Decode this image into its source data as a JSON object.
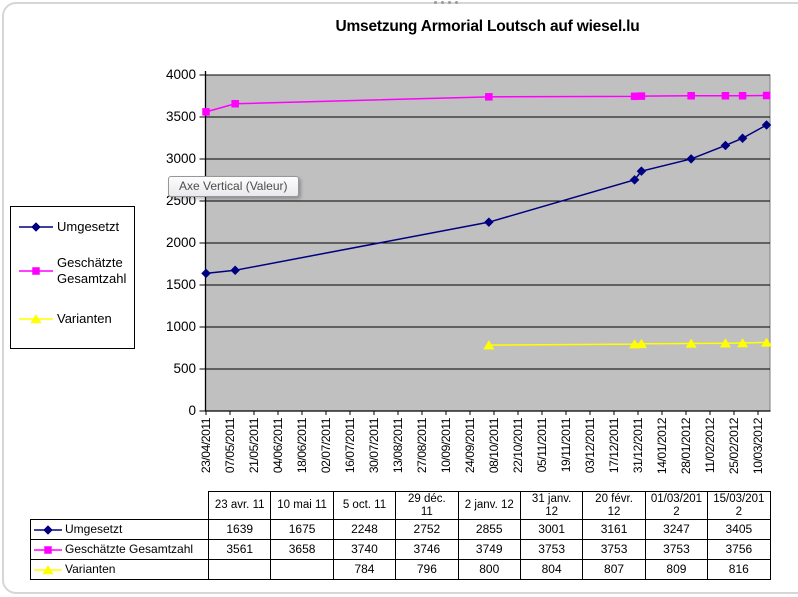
{
  "ui": {
    "tooltip": "Axe Vertical (Valeur)"
  },
  "chart_data": {
    "type": "line",
    "title": "Umsetzung Armorial Loutsch auf wiesel.lu",
    "xlabel": "",
    "ylabel": "",
    "ylim": [
      0,
      4000
    ],
    "y_ticks": [
      0,
      500,
      1000,
      1500,
      2000,
      2500,
      3000,
      3500,
      4000
    ],
    "x_tick_interval_days": 14,
    "x_tick_labels": [
      "23/04/2011",
      "07/05/2011",
      "21/05/2011",
      "04/06/2011",
      "18/06/2011",
      "02/07/2011",
      "16/07/2011",
      "30/07/2011",
      "13/08/2011",
      "27/08/2011",
      "10/09/2011",
      "24/09/2011",
      "08/10/2011",
      "22/10/2011",
      "05/11/2011",
      "19/11/2011",
      "03/12/2011",
      "17/12/2011",
      "31/12/2011",
      "14/01/2012",
      "28/01/2012",
      "11/02/2012",
      "25/02/2012",
      "10/03/2012"
    ],
    "plot_bg": "#C0C0C0",
    "grid_color": "#000000",
    "legend_position": "left",
    "series": [
      {
        "name": "Umgesetzt",
        "color": "#000080",
        "marker": "diamond",
        "points": [
          {
            "date": "23 avr. 11",
            "day": 0,
            "value": 1639
          },
          {
            "date": "10 mai 11",
            "day": 17,
            "value": 1675
          },
          {
            "date": "5 oct. 11",
            "day": 165,
            "value": 2248
          },
          {
            "date": "29 déc. 11",
            "day": 250,
            "value": 2752
          },
          {
            "date": "2 janv. 12",
            "day": 254,
            "value": 2855
          },
          {
            "date": "31 janv. 12",
            "day": 283,
            "value": 3001
          },
          {
            "date": "20 févr. 12",
            "day": 303,
            "value": 3161
          },
          {
            "date": "01/03/2012",
            "day": 313,
            "value": 3247
          },
          {
            "date": "15/03/2012",
            "day": 327,
            "value": 3405
          }
        ]
      },
      {
        "name": "Geschätzte Gesamtzahl",
        "color": "#FF00FF",
        "marker": "square",
        "points": [
          {
            "date": "23 avr. 11",
            "day": 0,
            "value": 3561
          },
          {
            "date": "10 mai 11",
            "day": 17,
            "value": 3658
          },
          {
            "date": "5 oct. 11",
            "day": 165,
            "value": 3740
          },
          {
            "date": "29 déc. 11",
            "day": 250,
            "value": 3746
          },
          {
            "date": "2 janv. 12",
            "day": 254,
            "value": 3749
          },
          {
            "date": "31 janv. 12",
            "day": 283,
            "value": 3753
          },
          {
            "date": "20 févr. 12",
            "day": 303,
            "value": 3753
          },
          {
            "date": "01/03/2012",
            "day": 313,
            "value": 3753
          },
          {
            "date": "15/03/2012",
            "day": 327,
            "value": 3756
          }
        ]
      },
      {
        "name": "Varianten",
        "color": "#FFFF00",
        "marker": "triangle",
        "points": [
          {
            "date": "5 oct. 11",
            "day": 165,
            "value": 784
          },
          {
            "date": "29 déc. 11",
            "day": 250,
            "value": 796
          },
          {
            "date": "2 janv. 12",
            "day": 254,
            "value": 800
          },
          {
            "date": "31 janv. 12",
            "day": 283,
            "value": 804
          },
          {
            "date": "20 févr. 12",
            "day": 303,
            "value": 807
          },
          {
            "date": "01/03/2012",
            "day": 313,
            "value": 809
          },
          {
            "date": "15/03/2012",
            "day": 327,
            "value": 816
          }
        ]
      }
    ]
  },
  "table": {
    "column_headers": [
      "23 avr. 11",
      "10 mai 11",
      "5 oct. 11",
      "29 déc.\n11",
      "2 janv. 12",
      "31 janv.\n12",
      "20 févr.\n12",
      "01/03/201\n2",
      "15/03/201\n2"
    ],
    "rows": [
      {
        "label": "Umgesetzt",
        "values": [
          "1639",
          "1675",
          "2248",
          "2752",
          "2855",
          "3001",
          "3161",
          "3247",
          "3405"
        ]
      },
      {
        "label": "Geschätzte Gesamtzahl",
        "values": [
          "3561",
          "3658",
          "3740",
          "3746",
          "3749",
          "3753",
          "3753",
          "3753",
          "3756"
        ]
      },
      {
        "label": "Varianten",
        "values": [
          "",
          "",
          "784",
          "796",
          "800",
          "804",
          "807",
          "809",
          "816"
        ]
      }
    ]
  }
}
